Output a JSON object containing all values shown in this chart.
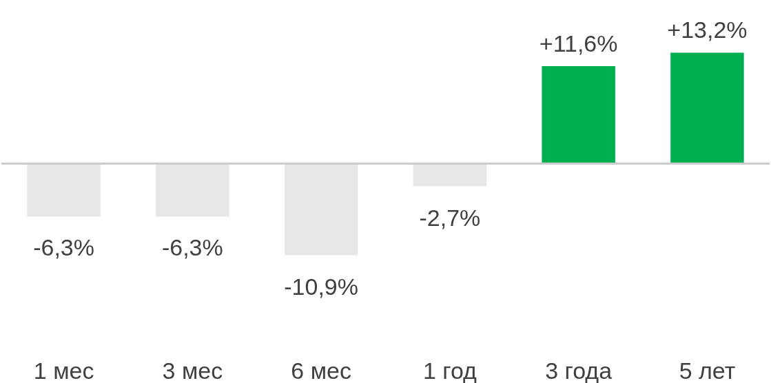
{
  "chart_data": {
    "type": "bar",
    "categories": [
      "1 мес",
      "3 мес",
      "6 мес",
      "1 год",
      "3 года",
      "5 лет"
    ],
    "values": [
      -6.3,
      -6.3,
      -10.9,
      -2.7,
      11.6,
      13.2
    ],
    "colors": [
      "#e7e7e9",
      "#e7e7e9",
      "#e7e7e9",
      "#e7e7e9",
      "#00b050",
      "#00b050"
    ],
    "value_labels": [
      "-6,3%",
      "-6,3%",
      "-10,9%",
      "-2,7%",
      "+11,6%",
      "+13,2%"
    ],
    "data_labels": false
  }
}
